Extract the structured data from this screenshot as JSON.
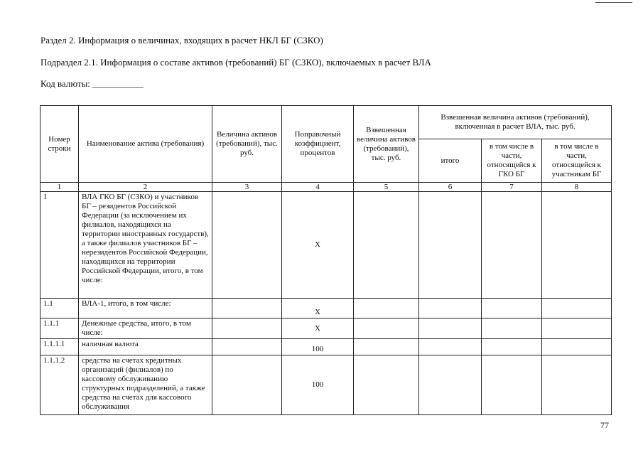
{
  "section_title": "Раздел 2. Информация о величинах, входящих в расчет НКЛ БГ (СЗКО)",
  "subsection_title": "Подраздел 2.1. Информация о составе активов (требований) БГ (СЗКО), включаемых в расчет ВЛА",
  "currency_code_label": "Код валюты: ___________",
  "table": {
    "headers": {
      "row_number": "Номер строки",
      "asset_name": "Наименование актива (требования)",
      "asset_value": "Величина активов (требований), тыс. руб.",
      "adjustment_coef": "Поправочный коэффициент, процентов",
      "weighted_value": "Взвешенная величина активов (требований), тыс. руб.",
      "weighted_included": "Взвешенная величина активов (требований), включенная в расчет ВЛА, тыс. руб.",
      "total": "итого",
      "gko_part": "в том числе в части, относящейся к ГКО БГ",
      "participants_part": "в том числе в части, относящейся к участникам БГ"
    },
    "column_numbers": [
      "1",
      "2",
      "3",
      "4",
      "5",
      "6",
      "7",
      "8"
    ],
    "rows": [
      {
        "num": "1",
        "name": "ВЛА ГКО БГ (СЗКО) и участников БГ – резидентов Российской Федерации (за исключением их филиалов, находящихся на территории иностранных государств), а также филиалов участников БГ – нерезидентов Российской Федерации, находящихся на территории Российской Федерации, итого, в том числе:",
        "coef": "X"
      },
      {
        "num": "1.1",
        "name": "ВЛА-1, итого, в том числе:",
        "coef": "X"
      },
      {
        "num": "1.1.1",
        "name": "Денежные средства, итого, в том числе:",
        "coef": "X"
      },
      {
        "num": "1.1.1.1",
        "name": "наличная валюта",
        "coef": "100"
      },
      {
        "num": "1.1.1.2",
        "name": "средства на счетах кредитных организаций (филиалов) по кассовому обслуживанию структурных подразделений, а также средства на счетах для кассового обслуживания",
        "coef": "100"
      }
    ]
  },
  "page_number": "77"
}
